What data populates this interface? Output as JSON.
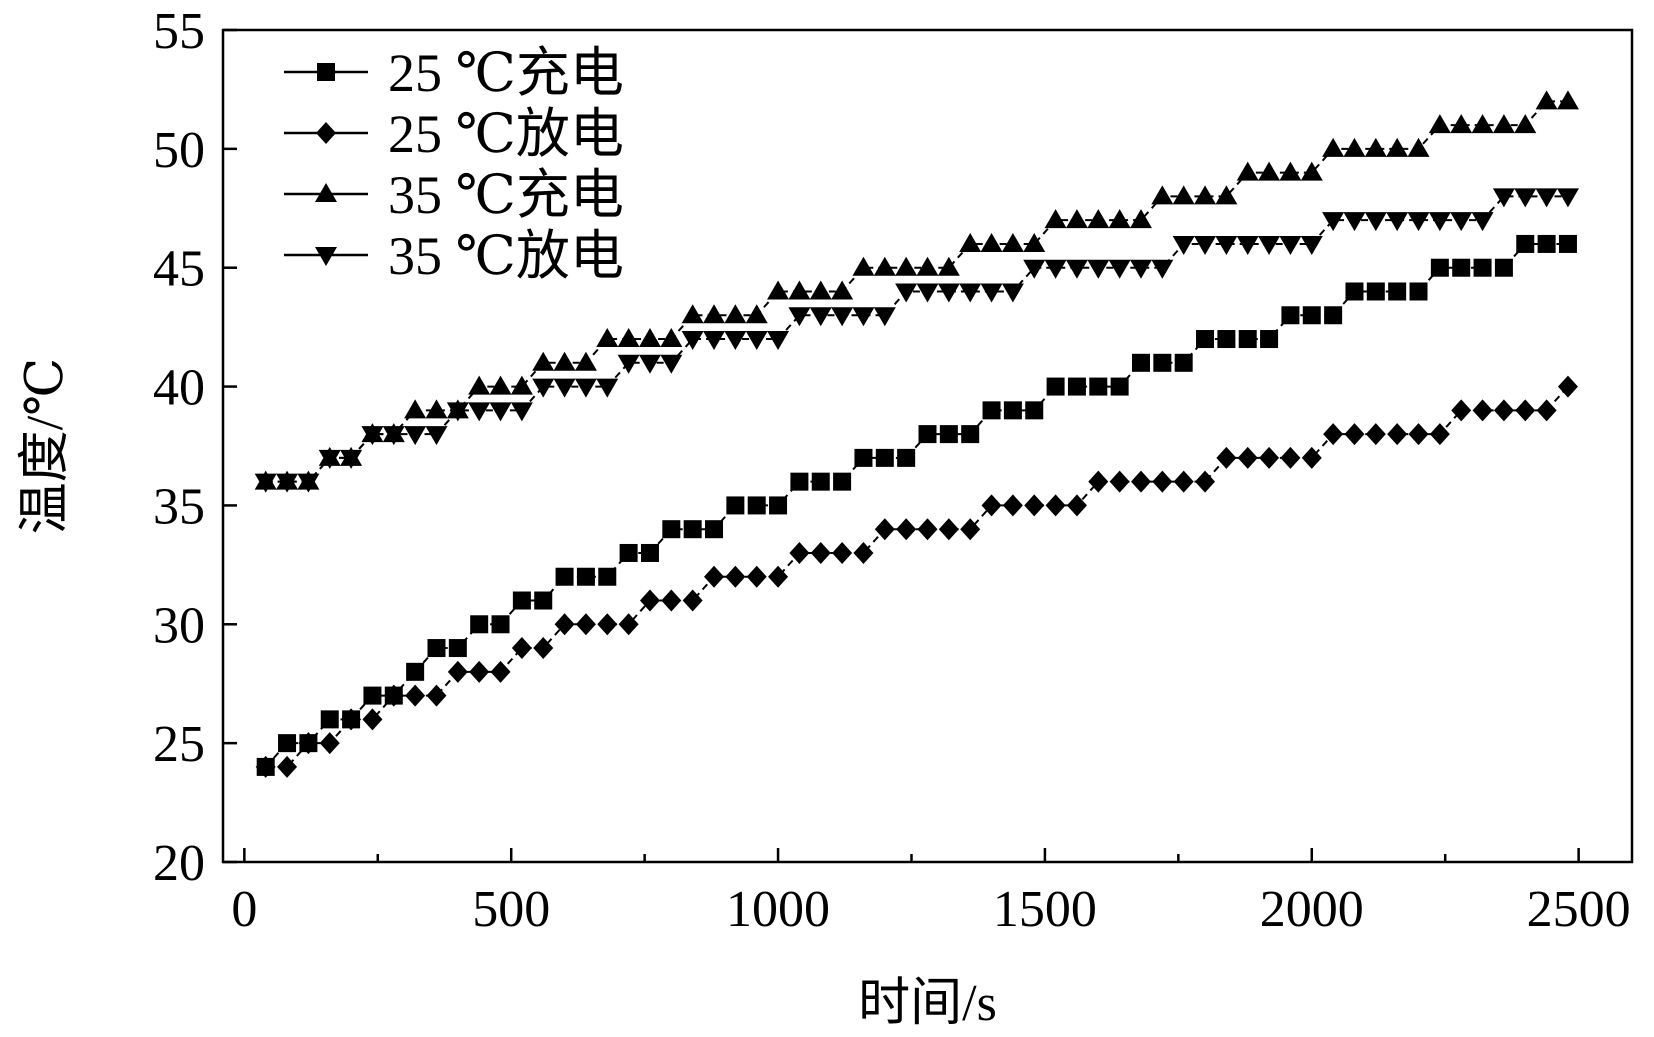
{
  "chart_data": {
    "type": "line",
    "xlabel": "时间/s",
    "ylabel": "温度/℃",
    "xlim": [
      -40,
      2600
    ],
    "ylim": [
      20,
      55
    ],
    "xticks": [
      0,
      500,
      1000,
      1500,
      2000,
      2500
    ],
    "yticks": [
      20,
      25,
      30,
      35,
      40,
      45,
      50,
      55
    ],
    "grid": false,
    "legend_position": "top-left",
    "x": [
      40,
      80,
      120,
      160,
      200,
      240,
      280,
      320,
      360,
      400,
      440,
      480,
      520,
      560,
      600,
      640,
      680,
      720,
      760,
      800,
      840,
      880,
      920,
      960,
      1000,
      1040,
      1080,
      1120,
      1160,
      1200,
      1240,
      1280,
      1320,
      1360,
      1400,
      1440,
      1480,
      1520,
      1560,
      1600,
      1640,
      1680,
      1720,
      1760,
      1800,
      1840,
      1880,
      1920,
      1960,
      2000,
      2040,
      2080,
      2120,
      2160,
      2200,
      2240,
      2280,
      2320,
      2360,
      2400,
      2440,
      2480
    ],
    "series": [
      {
        "name": "25 ℃充电",
        "marker": "square",
        "values": [
          24,
          25,
          25,
          26,
          26,
          27,
          27,
          28,
          29,
          29,
          30,
          30,
          31,
          31,
          32,
          32,
          32,
          33,
          33,
          34,
          34,
          34,
          35,
          35,
          35,
          36,
          36,
          36,
          37,
          37,
          37,
          38,
          38,
          38,
          39,
          39,
          39,
          40,
          40,
          40,
          40,
          41,
          41,
          41,
          42,
          42,
          42,
          42,
          43,
          43,
          43,
          44,
          44,
          44,
          44,
          45,
          45,
          45,
          45,
          46,
          46,
          46
        ]
      },
      {
        "name": "25 ℃放电",
        "marker": "diamond",
        "values": [
          24,
          24,
          25,
          25,
          26,
          26,
          27,
          27,
          27,
          28,
          28,
          28,
          29,
          29,
          30,
          30,
          30,
          30,
          31,
          31,
          31,
          32,
          32,
          32,
          32,
          33,
          33,
          33,
          33,
          34,
          34,
          34,
          34,
          34,
          35,
          35,
          35,
          35,
          35,
          36,
          36,
          36,
          36,
          36,
          36,
          37,
          37,
          37,
          37,
          37,
          38,
          38,
          38,
          38,
          38,
          38,
          39,
          39,
          39,
          39,
          39,
          40
        ]
      },
      {
        "name": "35 ℃充电",
        "marker": "triangle-up",
        "values": [
          36,
          36,
          36,
          37,
          37,
          38,
          38,
          39,
          39,
          39,
          40,
          40,
          40,
          41,
          41,
          41,
          42,
          42,
          42,
          42,
          43,
          43,
          43,
          43,
          44,
          44,
          44,
          44,
          45,
          45,
          45,
          45,
          45,
          46,
          46,
          46,
          46,
          47,
          47,
          47,
          47,
          47,
          48,
          48,
          48,
          48,
          49,
          49,
          49,
          49,
          50,
          50,
          50,
          50,
          50,
          51,
          51,
          51,
          51,
          51,
          52,
          52
        ]
      },
      {
        "name": "35 ℃放电",
        "marker": "triangle-down",
        "values": [
          36,
          36,
          36,
          37,
          37,
          38,
          38,
          38,
          38,
          39,
          39,
          39,
          39,
          40,
          40,
          40,
          40,
          41,
          41,
          41,
          42,
          42,
          42,
          42,
          42,
          43,
          43,
          43,
          43,
          43,
          44,
          44,
          44,
          44,
          44,
          44,
          45,
          45,
          45,
          45,
          45,
          45,
          45,
          46,
          46,
          46,
          46,
          46,
          46,
          46,
          47,
          47,
          47,
          47,
          47,
          47,
          47,
          47,
          48,
          48,
          48,
          48
        ]
      }
    ]
  }
}
